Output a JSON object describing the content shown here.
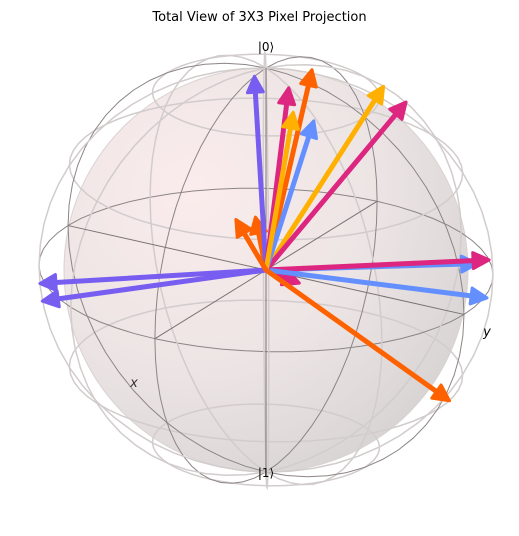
{
  "chart_data": {
    "type": "bloch-sphere",
    "title": "Total View of 3X3 Pixel Projection",
    "labels": {
      "top": "|0⟩",
      "bottom": "|1⟩",
      "x": "x",
      "y": "y"
    },
    "vectors": [
      {
        "index": 1,
        "color": "#648FFF",
        "theta": 26,
        "phi": 58
      },
      {
        "index": 2,
        "color": "#785EF0",
        "theta": 6,
        "phi": 0
      },
      {
        "index": 3,
        "color": "#DC267F",
        "theta": 12,
        "phi": 58
      },
      {
        "index": 4,
        "color": "#FE6100",
        "theta": 12,
        "phi": 132
      },
      {
        "index": 5,
        "color": "#FFB000",
        "theta": 38,
        "phi": 152
      },
      {
        "index": 6,
        "color": "#DC267F",
        "theta": 42,
        "phi": 142
      },
      {
        "index": 7,
        "color": "#FE6100",
        "theta": 55,
        "phi": 20
      },
      {
        "index": 8,
        "color": "#FFB000",
        "theta": 22,
        "phi": 48
      },
      {
        "index": 9,
        "color": "#648FFF",
        "theta": 100,
        "phi": 128
      },
      {
        "index": 10,
        "color": "#785EF0",
        "theta": 98,
        "phi": 305
      },
      {
        "index": 11,
        "color": "#DC267F",
        "theta": 90,
        "phi": 130
      },
      {
        "index": 12,
        "color": "#FE6100",
        "theta": 98,
        "phi": 212
      },
      {
        "index": 13,
        "color": "#648FFF",
        "theta": 95,
        "phi": 140
      },
      {
        "index": 14,
        "color": "#DC267F",
        "theta": 115,
        "phi": 200
      },
      {
        "index": 15,
        "color": "#FE6100",
        "theta": 125,
        "phi": 110
      },
      {
        "index": 16,
        "color": "#785EF0",
        "theta": 95,
        "phi": 300
      }
    ]
  }
}
